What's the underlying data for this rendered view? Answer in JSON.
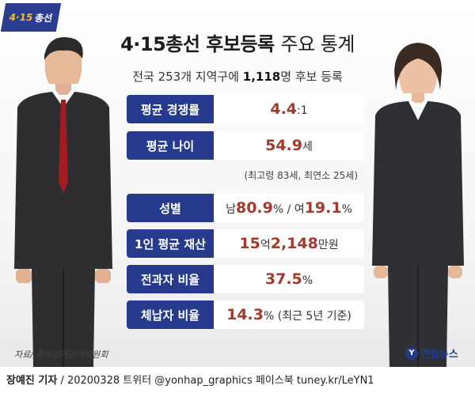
{
  "badge": {
    "number": "4·15",
    "label": "총선"
  },
  "title": {
    "bold": "4·15총선 후보등록",
    "light": "주요 통계"
  },
  "subtitle": {
    "prefix": "전국 253개 지역구에",
    "count": "1,118",
    "suffix": "명 후보 등록"
  },
  "stats": [
    {
      "label": "평균 경쟁률",
      "parts": [
        {
          "t": "4.4",
          "hl": true
        },
        {
          "t": ":1"
        }
      ]
    },
    {
      "label": "평균 나이",
      "parts": [
        {
          "t": "54.9",
          "hl": true
        },
        {
          "t": "세"
        }
      ]
    },
    {
      "label": "성별",
      "parts": [
        {
          "t": "남 "
        },
        {
          "t": "80.9",
          "hl": true
        },
        {
          "t": "% / 여 "
        },
        {
          "t": "19.1",
          "hl": true
        },
        {
          "t": "%"
        }
      ]
    },
    {
      "label": "1인 평균 재산",
      "parts": [
        {
          "t": "15",
          "hl": true
        },
        {
          "t": "억 "
        },
        {
          "t": "2,148",
          "hl": true
        },
        {
          "t": "만원"
        }
      ]
    },
    {
      "label": "전과자 비율",
      "parts": [
        {
          "t": "37.5",
          "hl": true
        },
        {
          "t": "%"
        }
      ]
    },
    {
      "label": "체납자 비율",
      "parts": [
        {
          "t": "14.3",
          "hl": true
        },
        {
          "t": "% (최근 5년 기준)"
        }
      ]
    }
  ],
  "age_note": "(최고령 83세, 최연소 25세)",
  "source": "자료/ 중앙선거관리위원회",
  "logo": {
    "mark": "Y",
    "text": "연합뉴스"
  },
  "footer": {
    "reporter": "장예진 기자",
    "rest": " / 20200328 트위터 @yonhap_graphics  페이스북 tuney.kr/LeYN1"
  },
  "colors": {
    "label_bg": "#263b8e",
    "highlight": "#a4392d"
  },
  "icons": {
    "male": "man-figure-icon",
    "female": "woman-figure-icon"
  }
}
